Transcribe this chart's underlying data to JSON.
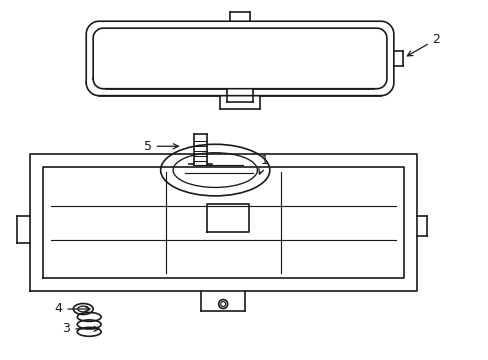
{
  "bg_color": "#ffffff",
  "line_color": "#1a1a1a",
  "line_width": 1.2,
  "fig_width": 4.89,
  "fig_height": 3.6
}
